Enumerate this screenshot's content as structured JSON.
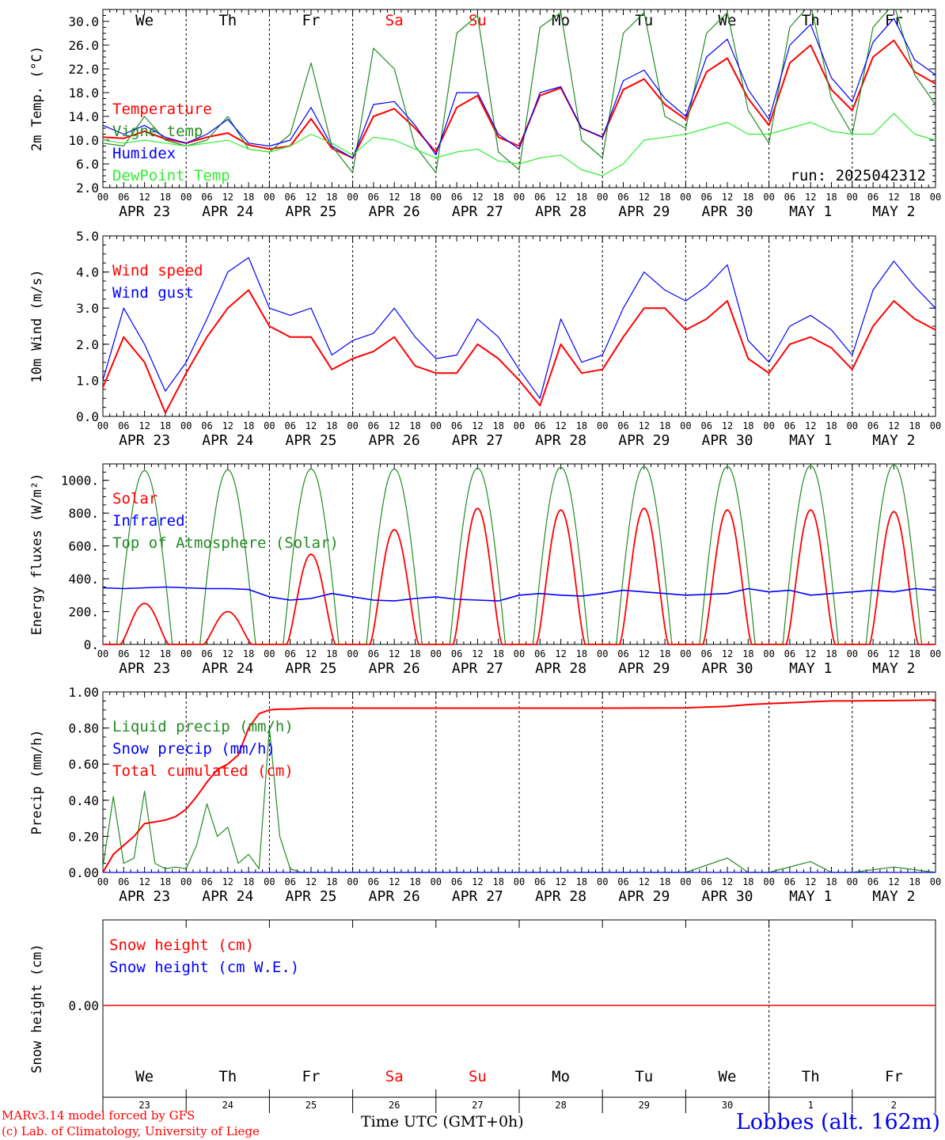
{
  "footer": {
    "credit_line1": "MARv3.14 model forced by GFS",
    "credit_line2": "(c) Lab. of Climatology, University of Liege",
    "xlabel": "Time UTC (GMT+0h)",
    "location": "Lobbes (alt. 162m)"
  },
  "chart_data": [
    {
      "type": "line",
      "id": "temp",
      "ylabel": "2m Temp. (°C)",
      "ylim": [
        2,
        32
      ],
      "yticks": [
        2,
        6,
        10,
        14,
        18,
        22,
        26,
        30
      ],
      "ytick_labels": [
        "2.0",
        "6.0",
        "10.0",
        "14.0",
        "18.0",
        "22.0",
        "26.0",
        "30.0"
      ],
      "weekday_labels": [
        "We",
        "Th",
        "Fr",
        "Sa",
        "Su",
        "Mo",
        "Tu",
        "We",
        "Th",
        "Fr"
      ],
      "weekday_colors": [
        "#000000",
        "#000000",
        "#000000",
        "#ff0000",
        "#ff0000",
        "#000000",
        "#000000",
        "#000000",
        "#000000",
        "#000000"
      ],
      "run_label": "run: 2025042312",
      "x_hours": [
        0,
        6,
        12,
        18,
        24,
        30,
        36,
        42,
        48,
        54,
        60,
        66,
        72,
        78,
        84,
        90,
        96,
        102,
        108,
        114,
        120,
        126,
        132,
        138,
        144,
        150,
        156,
        162,
        168,
        174,
        180,
        186,
        192,
        198,
        204,
        210,
        216,
        222,
        228,
        234,
        240
      ],
      "series": [
        {
          "name": "Temperature",
          "color": "#ff0000",
          "values": [
            10.5,
            10.3,
            11.5,
            10.2,
            9.5,
            10.5,
            11.2,
            9.2,
            8.5,
            9.0,
            13.6,
            8.6,
            7.0,
            14.0,
            15.3,
            12.0,
            8.0,
            15.5,
            17.5,
            10.5,
            9.0,
            17.5,
            18.8,
            12.0,
            10.5,
            18.5,
            20.3,
            16.0,
            13.5,
            21.5,
            23.8,
            17.0,
            12.5,
            23.0,
            26.0,
            18.5,
            15.0,
            24.0,
            26.8,
            21.5,
            19.5
          ]
        },
        {
          "name": "Vigne temp",
          "color": "#228b22",
          "values": [
            9.5,
            9.0,
            14.0,
            10.0,
            9.0,
            10.0,
            14.0,
            8.5,
            8.0,
            11.0,
            23.0,
            9.0,
            4.5,
            25.5,
            22.0,
            9.0,
            4.5,
            28.0,
            31.0,
            8.0,
            5.0,
            29.0,
            31.5,
            10.0,
            7.0,
            28.0,
            31.5,
            14.0,
            12.0,
            28.0,
            31.5,
            15.0,
            9.5,
            29.0,
            33.0,
            17.0,
            11.0,
            29.0,
            33.0,
            21.0,
            16.0
          ]
        },
        {
          "name": "Humidex",
          "color": "#0000ff",
          "values": [
            12.5,
            11.0,
            12.5,
            10.5,
            9.5,
            11.0,
            13.5,
            9.5,
            9.0,
            10.0,
            15.5,
            9.0,
            7.0,
            16.0,
            16.5,
            12.5,
            7.5,
            18.0,
            18.0,
            11.0,
            8.5,
            18.0,
            19.0,
            12.0,
            10.5,
            20.0,
            21.8,
            17.0,
            14.0,
            24.0,
            27.0,
            18.5,
            13.5,
            26.0,
            29.5,
            20.5,
            16.5,
            26.5,
            30.5,
            23.5,
            21.0
          ]
        },
        {
          "name": "DewPoint Temp",
          "color": "#33ee33",
          "values": [
            10.0,
            9.5,
            10.0,
            9.5,
            9.0,
            9.5,
            10.0,
            8.5,
            8.0,
            9.0,
            11.0,
            9.5,
            7.5,
            10.5,
            10.0,
            8.5,
            7.0,
            8.0,
            8.5,
            6.5,
            6.0,
            7.0,
            7.5,
            5.0,
            4.0,
            6.0,
            10.0,
            10.5,
            11.0,
            12.0,
            13.0,
            11.0,
            11.0,
            12.0,
            13.0,
            11.5,
            11.0,
            11.0,
            14.5,
            11.0,
            10.0
          ]
        }
      ],
      "legend": [
        "Temperature",
        "Vigne temp",
        "Humidex",
        "DewPoint Temp"
      ]
    },
    {
      "type": "line",
      "id": "wind",
      "ylabel": "10m Wind (m/s)",
      "ylim": [
        0,
        5
      ],
      "yticks": [
        0,
        1,
        2,
        3,
        4,
        5
      ],
      "ytick_labels": [
        "0.0",
        "1.0",
        "2.0",
        "3.0",
        "4.0",
        "5.0"
      ],
      "x_hours": [
        0,
        6,
        12,
        18,
        24,
        30,
        36,
        42,
        48,
        54,
        60,
        66,
        72,
        78,
        84,
        90,
        96,
        102,
        108,
        114,
        120,
        126,
        132,
        138,
        144,
        150,
        156,
        162,
        168,
        174,
        180,
        186,
        192,
        198,
        204,
        210,
        216,
        222,
        228,
        234,
        240
      ],
      "series": [
        {
          "name": "Wind speed",
          "color": "#ff0000",
          "values": [
            0.8,
            2.2,
            1.5,
            0.1,
            1.2,
            2.2,
            3.0,
            3.5,
            2.5,
            2.2,
            2.2,
            1.3,
            1.6,
            1.8,
            2.2,
            1.4,
            1.2,
            1.2,
            2.0,
            1.6,
            1.0,
            0.3,
            2.0,
            1.2,
            1.3,
            2.2,
            3.0,
            3.0,
            2.4,
            2.7,
            3.2,
            1.6,
            1.2,
            2.0,
            2.2,
            1.9,
            1.3,
            2.5,
            3.2,
            2.7,
            2.4
          ]
        },
        {
          "name": "Wind gust",
          "color": "#0000ff",
          "values": [
            1.0,
            3.0,
            2.0,
            0.7,
            1.5,
            2.7,
            4.0,
            4.4,
            3.0,
            2.8,
            3.0,
            1.7,
            2.1,
            2.3,
            3.0,
            2.2,
            1.6,
            1.7,
            2.7,
            2.2,
            1.3,
            0.5,
            2.7,
            1.5,
            1.7,
            3.0,
            4.0,
            3.5,
            3.2,
            3.6,
            4.2,
            2.1,
            1.5,
            2.5,
            2.8,
            2.4,
            1.7,
            3.5,
            4.3,
            3.6,
            3.0
          ]
        }
      ],
      "legend": [
        "Wind speed",
        "Wind gust"
      ]
    },
    {
      "type": "line",
      "id": "energy",
      "ylabel": "Energy fluxes (W/m²)",
      "ylim": [
        0,
        1100
      ],
      "yticks": [
        0,
        200,
        400,
        600,
        800,
        1000
      ],
      "ytick_labels": [
        "0.",
        "200.",
        "400.",
        "600.",
        "800.",
        "1000."
      ],
      "peaks": {
        "toa": [
          1060,
          1065,
          1070,
          1070,
          1075,
          1080,
          1085,
          1085,
          1090,
          1095
        ],
        "solar": [
          250,
          200,
          550,
          700,
          830,
          820,
          830,
          820,
          820,
          810
        ]
      },
      "infrared_values": [
        345,
        340,
        345,
        350,
        345,
        340,
        340,
        335,
        290,
        270,
        280,
        310,
        290,
        270,
        265,
        280,
        290,
        275,
        270,
        265,
        300,
        310,
        300,
        295,
        310,
        330,
        320,
        310,
        300,
        305,
        310,
        340,
        320,
        330,
        300,
        310,
        320,
        330,
        320,
        340,
        330
      ],
      "series": [
        {
          "name": "Solar",
          "color": "#ff0000"
        },
        {
          "name": "Infrared",
          "color": "#0000ff"
        },
        {
          "name": "Top of Atmosphere (Solar)",
          "color": "#228b22"
        }
      ],
      "legend": [
        "Solar",
        "Infrared",
        "Top of Atmosphere (Solar)"
      ]
    },
    {
      "type": "line",
      "id": "precip",
      "ylabel": "Precip (mm/h)",
      "ylim": [
        0,
        1
      ],
      "yticks": [
        0,
        0.2,
        0.4,
        0.6,
        0.8,
        1.0
      ],
      "ytick_labels": [
        "0.00",
        "0.20",
        "0.40",
        "0.60",
        "0.80",
        "1.00"
      ],
      "x_hours": [
        0,
        3,
        6,
        9,
        12,
        15,
        18,
        21,
        24,
        27,
        30,
        33,
        36,
        39,
        42,
        45,
        48,
        51,
        54,
        57,
        60,
        66,
        72,
        96,
        120,
        144,
        168,
        180,
        186,
        192,
        204,
        210,
        216,
        228,
        240
      ],
      "series": [
        {
          "name": "Liquid precip (mm/h)",
          "color": "#228b22",
          "values": [
            0.03,
            0.42,
            0.05,
            0.08,
            0.45,
            0.05,
            0.02,
            0.03,
            0.02,
            0.15,
            0.38,
            0.2,
            0.25,
            0.05,
            0.1,
            0.02,
            0.8,
            0.2,
            0.02,
            0.0,
            0.0,
            0.0,
            0.0,
            0.0,
            0.0,
            0.0,
            0.0,
            0.08,
            0.0,
            0.0,
            0.06,
            0.0,
            0.0,
            0.03,
            0.0
          ]
        },
        {
          "name": "Snow precip (mm/h)",
          "color": "#0000ff",
          "values": [
            0,
            0,
            0,
            0,
            0,
            0,
            0,
            0,
            0,
            0,
            0,
            0,
            0,
            0,
            0,
            0,
            0,
            0,
            0,
            0,
            0,
            0,
            0,
            0,
            0,
            0,
            0,
            0,
            0,
            0,
            0,
            0,
            0,
            0,
            0
          ]
        },
        {
          "name": "Total cumulated (cm)",
          "color": "#ff0000",
          "values": [
            0.0,
            0.1,
            0.15,
            0.2,
            0.27,
            0.28,
            0.29,
            0.31,
            0.35,
            0.42,
            0.5,
            0.57,
            0.6,
            0.65,
            0.8,
            0.88,
            0.9,
            0.905,
            0.905,
            0.908,
            0.91,
            0.91,
            0.91,
            0.91,
            0.91,
            0.91,
            0.912,
            0.92,
            0.93,
            0.935,
            0.945,
            0.95,
            0.95,
            0.952,
            0.955
          ]
        }
      ],
      "legend": [
        "Liquid precip (mm/h)",
        "Snow precip (mm/h)",
        "Total cumulated (cm)"
      ]
    },
    {
      "type": "line",
      "id": "snow",
      "ylabel": "Snow height (cm)",
      "yticks": [
        0
      ],
      "ytick_labels": [
        "0.00"
      ],
      "weekday_labels": [
        "We",
        "Th",
        "Fr",
        "Sa",
        "Su",
        "Mo",
        "Tu",
        "We",
        "Th",
        "Fr"
      ],
      "weekday_colors": [
        "#000000",
        "#000000",
        "#000000",
        "#ff0000",
        "#ff0000",
        "#000000",
        "#000000",
        "#000000",
        "#000000",
        "#000000"
      ],
      "day_numbers": [
        "23",
        "24",
        "25",
        "26",
        "27",
        "28",
        "29",
        "30",
        "1",
        "2"
      ],
      "series": [
        {
          "name": "Snow height (cm)",
          "color": "#ff0000",
          "values": [
            0,
            0
          ]
        },
        {
          "name": "Snow height (cm W.E.)",
          "color": "#0000ff",
          "values": [
            0,
            0
          ]
        }
      ],
      "legend": [
        "Snow height (cm)",
        "Snow height (cm W.E.)"
      ]
    }
  ],
  "x_axis": {
    "hour_labels": [
      "00",
      "06",
      "12",
      "18"
    ],
    "end_label": "00",
    "date_labels": [
      "APR 23",
      "APR 24",
      "APR 25",
      "APR 26",
      "APR 27",
      "APR 28",
      "APR 29",
      "APR 30",
      "MAY  1",
      "MAY  2"
    ]
  }
}
